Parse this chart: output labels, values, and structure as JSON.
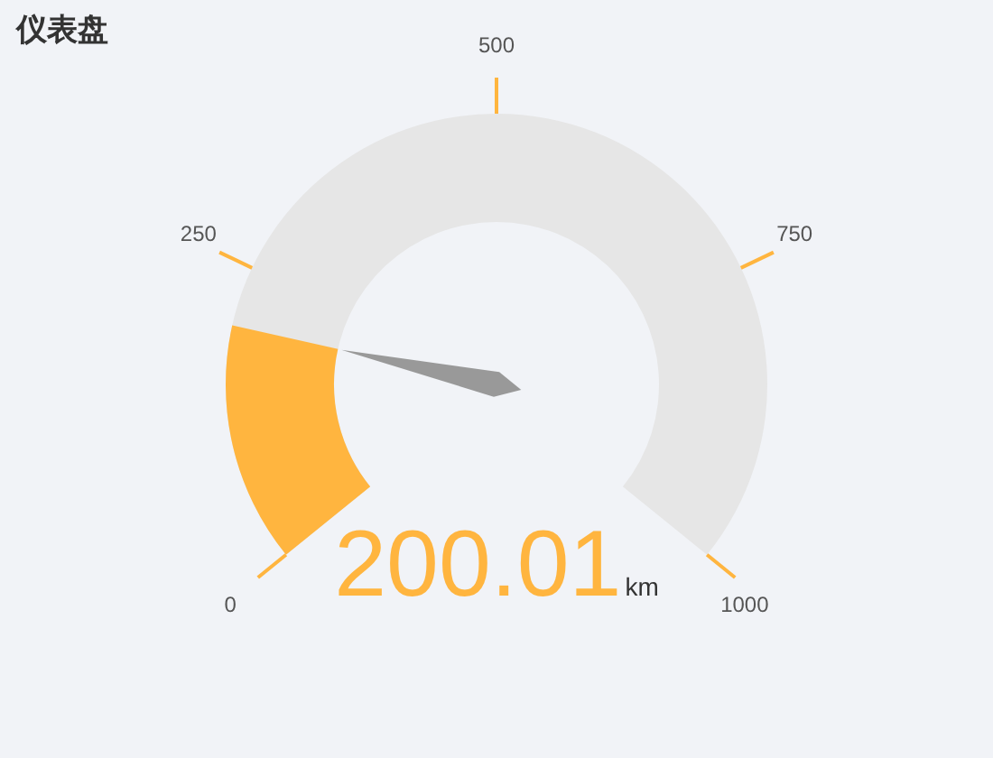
{
  "chart_data": {
    "type": "other",
    "title": "仪表盘",
    "values": [
      200.01
    ],
    "ylabel": "km",
    "color": "#ffb53f",
    "data_labels": true,
    "annotations": [
      "0",
      "250",
      "500",
      "750",
      "1000"
    ]
  }
}
